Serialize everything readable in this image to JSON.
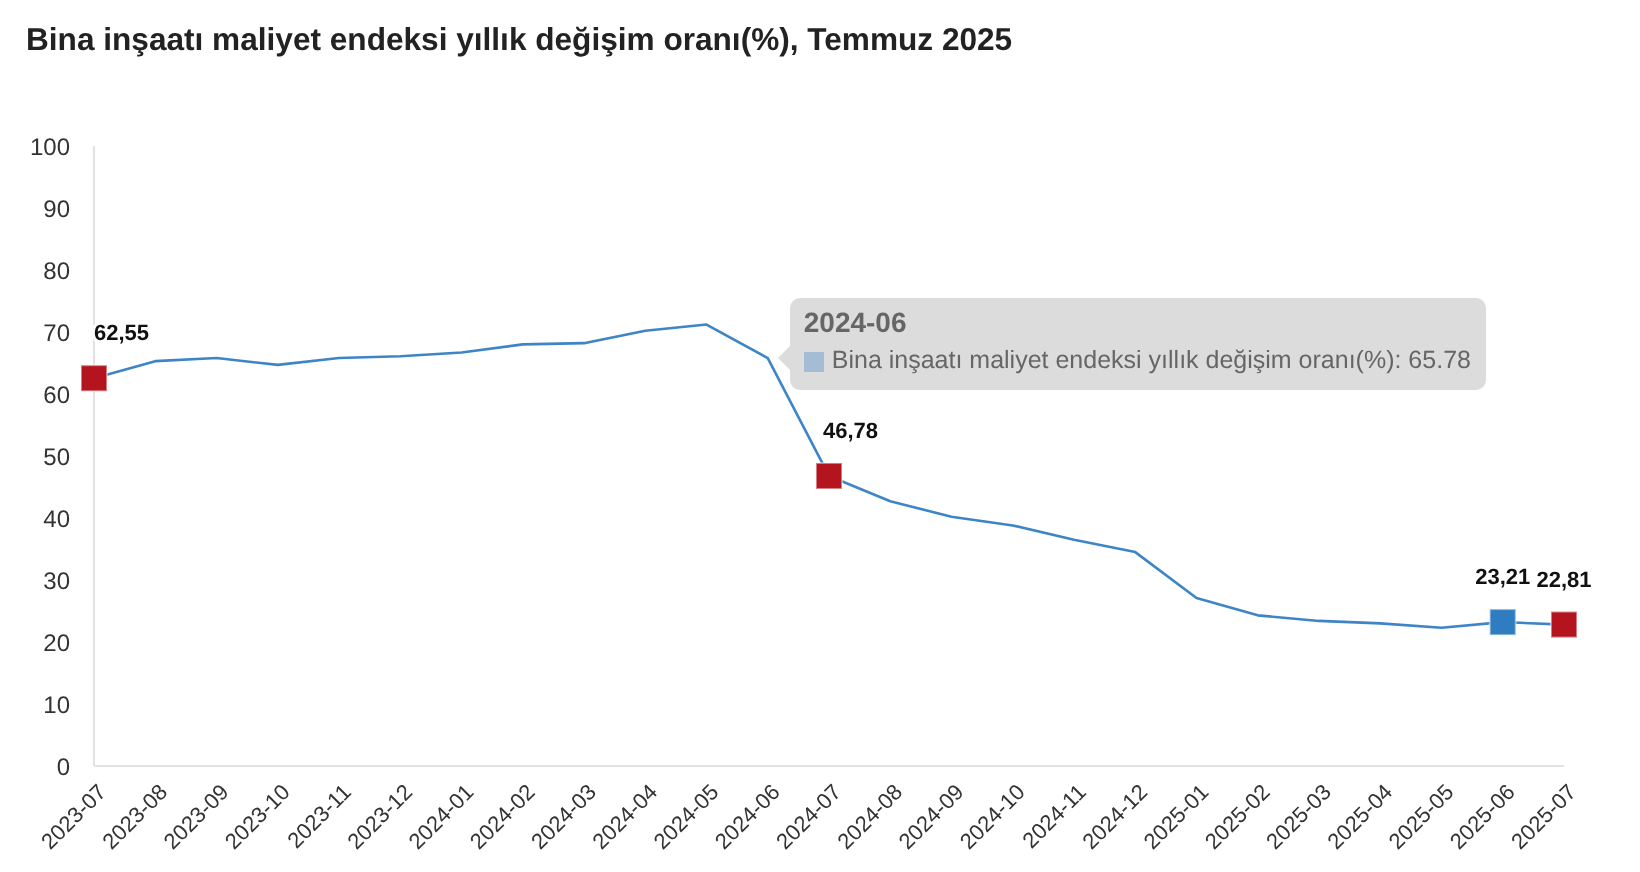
{
  "chart_data": {
    "type": "line",
    "title": "Bina inşaatı maliyet endeksi yıllık değişim oranı(%), Temmuz 2025",
    "categories": [
      "2023-07",
      "2023-08",
      "2023-09",
      "2023-10",
      "2023-11",
      "2023-12",
      "2024-01",
      "2024-02",
      "2024-03",
      "2024-04",
      "2024-05",
      "2024-06",
      "2024-07",
      "2024-08",
      "2024-09",
      "2024-10",
      "2024-11",
      "2024-12",
      "2025-01",
      "2025-02",
      "2025-03",
      "2025-04",
      "2025-05",
      "2025-06",
      "2025-07"
    ],
    "series": [
      {
        "color": "#3d85c6",
        "values": [
          62.55,
          65.3,
          65.8,
          64.7,
          65.8,
          66.1,
          66.7,
          68.0,
          68.2,
          70.2,
          71.2,
          65.78,
          46.78,
          42.7,
          40.2,
          38.8,
          36.5,
          34.5,
          27.1,
          24.3,
          23.4,
          23.0,
          22.3,
          23.21,
          22.81
        ],
        "colors": [
          "#b3141d",
          null,
          null,
          null,
          null,
          null,
          null,
          null,
          null,
          null,
          null,
          null,
          "#b3141d",
          null,
          null,
          null,
          null,
          null,
          null,
          null,
          null,
          null,
          null,
          "#2f7dc0",
          "#b3141d"
        ],
        "value_labels": [
          "62,55",
          null,
          null,
          null,
          null,
          null,
          null,
          null,
          null,
          null,
          null,
          null,
          "46,78",
          null,
          null,
          null,
          null,
          null,
          null,
          null,
          null,
          null,
          null,
          "23,21",
          "22,81"
        ]
      }
    ],
    "ylim": [
      0,
      100
    ],
    "yticks": [
      0,
      10,
      20,
      30,
      40,
      50,
      60,
      70,
      80,
      90,
      100
    ],
    "annotations": [
      {
        "text": "2024-06",
        "x": "2024-06",
        "y": 65.78
      },
      {
        "text": "Bina inşaatı maliyet endeksi yıllık değişim oranı(%): 65.78",
        "x": "2024-06",
        "y": 65.78
      }
    ]
  }
}
